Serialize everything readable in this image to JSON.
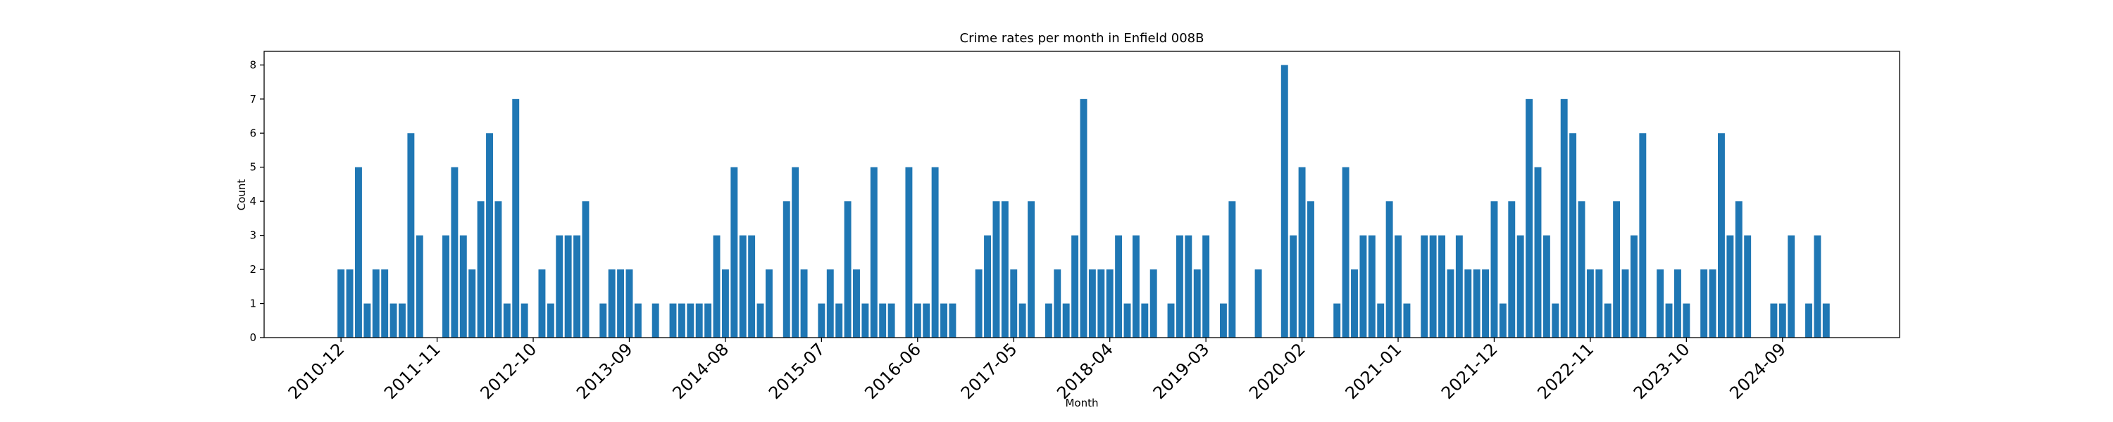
{
  "chart_data": {
    "type": "bar",
    "title": "Crime rates per month in Enfield 008B",
    "xlabel": "Month",
    "ylabel": "Count",
    "color": "#1f77b4",
    "grid": false,
    "categories": [
      "2010-12",
      null,
      null,
      null,
      null,
      null,
      null,
      null,
      null,
      null,
      null,
      "2011-11",
      null,
      null,
      null,
      null,
      null,
      null,
      null,
      null,
      null,
      null,
      "2012-10",
      null,
      null,
      null,
      null,
      null,
      null,
      null,
      null,
      null,
      null,
      "2013-09",
      null,
      null,
      null,
      null,
      null,
      null,
      null,
      null,
      null,
      null,
      "2014-08",
      null,
      null,
      null,
      null,
      null,
      null,
      null,
      null,
      null,
      null,
      "2015-07",
      null,
      null,
      null,
      null,
      null,
      null,
      null,
      null,
      null,
      null,
      "2016-06",
      null,
      null,
      null,
      null,
      null,
      null,
      null,
      null,
      null,
      null,
      "2017-05",
      null,
      null,
      null,
      null,
      null,
      null,
      null,
      null,
      null,
      null,
      "2018-04",
      null,
      null,
      null,
      null,
      null,
      null,
      null,
      null,
      null,
      null,
      "2019-03",
      null,
      null,
      null,
      null,
      null,
      null,
      null,
      null,
      null,
      null,
      "2020-02",
      null,
      null,
      null,
      null,
      null,
      null,
      null,
      null,
      null,
      null,
      "2021-01",
      null,
      null,
      null,
      null,
      null,
      null,
      null,
      null,
      null,
      null,
      "2021-12",
      null,
      null,
      null,
      null,
      null,
      null,
      null,
      null,
      null,
      null,
      "2022-11",
      null,
      null,
      null,
      null,
      null,
      null,
      null,
      null,
      null,
      null,
      "2023-10",
      null,
      null,
      null,
      null,
      null,
      null,
      null,
      null,
      null,
      null,
      "2024-09",
      null,
      null,
      null,
      null,
      null
    ],
    "values": [
      2,
      2,
      5,
      1,
      2,
      2,
      1,
      1,
      6,
      3,
      0,
      0,
      3,
      5,
      3,
      2,
      4,
      6,
      4,
      1,
      7,
      1,
      0,
      2,
      1,
      3,
      3,
      3,
      4,
      0,
      1,
      2,
      2,
      2,
      1,
      0,
      1,
      0,
      1,
      1,
      1,
      1,
      1,
      3,
      2,
      5,
      3,
      3,
      1,
      2,
      0,
      4,
      5,
      2,
      0,
      1,
      2,
      1,
      4,
      2,
      1,
      5,
      1,
      1,
      0,
      5,
      1,
      1,
      5,
      1,
      1,
      0,
      0,
      2,
      3,
      4,
      4,
      2,
      1,
      4,
      0,
      1,
      2,
      1,
      3,
      7,
      2,
      2,
      2,
      3,
      1,
      3,
      1,
      2,
      0,
      1,
      3,
      3,
      2,
      3,
      0,
      1,
      4,
      0,
      0,
      2,
      0,
      0,
      8,
      3,
      5,
      4,
      0,
      0,
      1,
      5,
      2,
      3,
      3,
      1,
      4,
      3,
      1,
      0,
      3,
      3,
      3,
      2,
      3,
      2,
      2,
      2,
      4,
      1,
      4,
      3,
      7,
      5,
      3,
      1,
      7,
      6,
      4,
      2,
      2,
      1,
      4,
      2,
      3,
      6,
      0,
      2,
      1,
      2,
      1,
      0,
      2,
      2,
      6,
      3,
      4,
      3,
      0,
      0,
      1,
      1,
      3,
      0,
      1,
      3,
      1
    ],
    "ylim": [
      0,
      8.4
    ],
    "yticks": [
      0,
      1,
      2,
      3,
      4,
      5,
      6,
      7,
      8
    ]
  }
}
